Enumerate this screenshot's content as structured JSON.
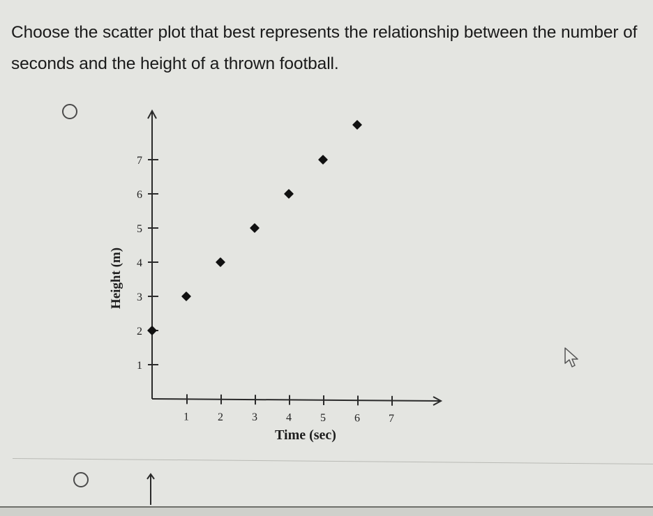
{
  "question": {
    "text": "Choose the scatter plot that best represents the relationship between the number of seconds and the height of a thrown football."
  },
  "options": [
    {
      "id": "A",
      "selected": false,
      "icon": "radio-unselected-icon"
    },
    {
      "id": "B",
      "selected": false,
      "icon": "radio-unselected-icon"
    }
  ],
  "chart_data": {
    "type": "scatter",
    "title": "",
    "xlabel": "Time (sec)",
    "ylabel": "Height (m)",
    "x_ticks": [
      "1",
      "2",
      "3",
      "4",
      "5",
      "6",
      "7"
    ],
    "y_ticks": [
      "1",
      "2",
      "3",
      "4",
      "5",
      "6",
      "7"
    ],
    "xlim": [
      0,
      8
    ],
    "ylim": [
      0,
      8
    ],
    "grid": false,
    "legend": null,
    "marker": "diamond",
    "points": [
      {
        "x": 0,
        "y": 2
      },
      {
        "x": 1,
        "y": 3
      },
      {
        "x": 2,
        "y": 4
      },
      {
        "x": 3,
        "y": 5
      },
      {
        "x": 4,
        "y": 6
      },
      {
        "x": 5,
        "y": 7
      },
      {
        "x": 6,
        "y": 8
      }
    ]
  },
  "colors": {
    "background": "#e4e5e1",
    "text": "#1a1a1a",
    "axis": "#2a2a2a",
    "marker": "#111111"
  },
  "icons": {
    "cursor": "mouse-pointer-icon",
    "partial_next_chart": "up-arrow-icon"
  }
}
